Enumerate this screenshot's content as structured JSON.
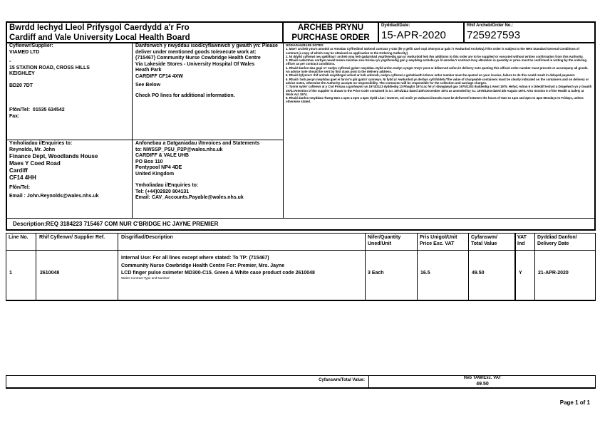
{
  "header": {
    "org_welsh": "Bwrdd Iechyd Lleol Prifysgol Caerdydd a'r Fro",
    "org_english": "Cardiff and Vale University Local Health Board",
    "title_welsh": "ARCHEB PRYNU",
    "title_english": "PURCHASE ORDER",
    "date_label": "Dyddiad/Date:",
    "date": "15-APR-2020",
    "order_label": "Rhif Archeb/Order No.:",
    "order_no": "725927593"
  },
  "supplier": {
    "label": "Cyflenwr/Supplier:",
    "name": "VIAMED LTD",
    "line2": "-",
    "address1": "15 STATION ROAD, CROSS HILLS",
    "address2": "KEIGHLEY",
    "postcode": "BD20 7DT",
    "phone_label": "Ffôn/Tel:",
    "phone": "01535 634542",
    "fax_label": "Fax:"
  },
  "delivery": {
    "label": "Danfonwch y nwyddau isod/cyflawnwch y gwaith yn: Please deliver under mentioned goods to/execute work at:",
    "line1": "(715467) Community Nurse Cowbridge Health Centre",
    "line2": "Via Lakeside Stores - University Hospital Of Wales",
    "line3": "Heath Park",
    "line4": "CARDIFF CF14 4XW",
    "see_below": "See Below",
    "check": "Check PO lines for additional information."
  },
  "notes": {
    "title": "NODIADAU/BASE NOTES:",
    "items": [
      "1. Mae'r archeb yma'n amodol ar Amodau Cyffredinol Safonol contract y GIG (lle y gellir cael copi ohonynt ar gais i'r Awdurdod Archebu)./This order is subject to the NHS Standard General Conditions of contract (a copy of which may be obtained on application to the Ordering Authority)",
      "2. Ni ddylid cyflenwi neu gwblhau'r archeb yma heb gadarnhad ysgrifenedig gan yr Awdurdod heb /No additions to this order are to be supplied or executed without written confirmation from this Authority.",
      "3. Rhaid cadarnhau unrhyw newid mewn meintiau neu brisiau yn ysgrifenedig gan y swyddog archebu yn ôl amodau'r contract./Any alteration in quantity or price must be confirmed in writing by the ordering officer as per contract conditions.",
      "4. Rhaid danfon dau gopi o'r nodyn cyflenwi gyda'r nwyddau. Dylid anfon nodyn cyngor trwy'r post ar ddiwrnod anfon./A delivery note quoting this official order number must precede or accompany all goods. An advice note should be sent by first class post to the delivery address.",
      "5. Rhaid dyfynnu'r rhif archeb swyddogol uchod ar bob anfoneb, nodyn cyflenwi a gohebiaeth./Above order number must be quoted on your invoice, failure to do this could result in delayed payment.",
      "6. Rhaid i bob pecyn nwyddau gael ei farcio'n glir gyda'r cynnwys. Ni fydd yr Awdurdod yn derbyn cyfrifoldeb./The value of chargeable containers must be clearly indicated on the containers and on delivery or advice notes, otherwise the Authority accepts no responsibility. The contractor will be responsible for the collection and carriage charges.",
      "7. Tynnir sylw'r cyflenwr at y Cod Prisiau a gynhwysir yn 1974/2113 dyddiedig 13 Rhagfyr 1974 ac fel y'i diwygiwyd gan 1975/1203 dyddiedig 4 Awst 1975. Hefyd, Adran 6 o Ddeddf Iechyd a Diogelwch yn y Gwaith 1974./Attention of the supplier is drawn to the Price Code contained in S.I. 1974/2113 dated 13th December 1974 as amended by S.I. 1975/1203 dated 4th August 1975. Also Section 6 of the Health & Safety at Work Act 1974.",
      "8. Rhaid danfon nwyddau rhwng 9am a 1pm a 2pm a 4pm dydd Llun i Gwener, oni nodir yn wahanol./Goods must be delivered between the hours of 9am to 1pm and 2pm to 4pm Mondays to Fridays, unless otherwise stated."
    ]
  },
  "enquiries": {
    "label": "Ymholiadau i/Enquiries to:",
    "name": "Reynolds, Mr. John",
    "line1": "Finance Dept, Woodlands House",
    "line2": "Maes Y Coed Road",
    "line3": "Cardiff",
    "postcode": "CF14 4HH",
    "phone_label": "Ffôn/Tel:",
    "email": "Email : John.Reynolds@wales.nhs.uk"
  },
  "invoices": {
    "label": "Anfonebau a Datganiadau i/Invoices and Statements",
    "to": "to: NWSSP_PSU_P2P@wales.nhs.uk",
    "line1": "CARDIFF & VALE UHB",
    "line2": "PO Box 110",
    "line3": "Pontypool NP4 4DE",
    "line4": "United Kingdom",
    "enq_label": "Ymholiadau i/Enquiries to:",
    "tel": "Tel: (+44)02920 804131",
    "email": "Email: CAV_Accounts.Payable@wales.nhs.uk"
  },
  "description": "Description:REQ 3184223  715467 COM NUR C'BRIDGE HC  JAYNE PREMIER",
  "table": {
    "headers": [
      "Line No.",
      "Rhif Cyflenwr/ Supplier Ref.",
      "Disgrifiad/Description",
      "Nifer/Quantity Uned/Unit",
      "Pris Unigol/Unit Price Exc. VAT",
      "Cyfanswm/ Total Value",
      "VAT Ind",
      "Dyddiad Danfon/ Delivery Date"
    ],
    "rows": [
      {
        "line": "1",
        "ref": "2610048",
        "desc_internal": "Internal Use: For all lines except where stated: To TP: (715467) Community Nurse Cowbridge Health Centre For: Premier, Mrs. Jayne",
        "desc": "LCD finger pulse oximeter MD300-C15. Green & White case product code 2610048",
        "desc_small": "Wales Contract Type and Number:",
        "qty": "3 Each",
        "price": "16.5",
        "total": "49.50",
        "vat": "Y",
        "date": "21-APR-2020"
      }
    ]
  },
  "totals": {
    "label": "Cyfanswm/Total Value:",
    "exc_label": "Heb TAW/Exc. VAT",
    "value": "49.50"
  },
  "footer": {
    "page": "Page 1 of 1"
  }
}
